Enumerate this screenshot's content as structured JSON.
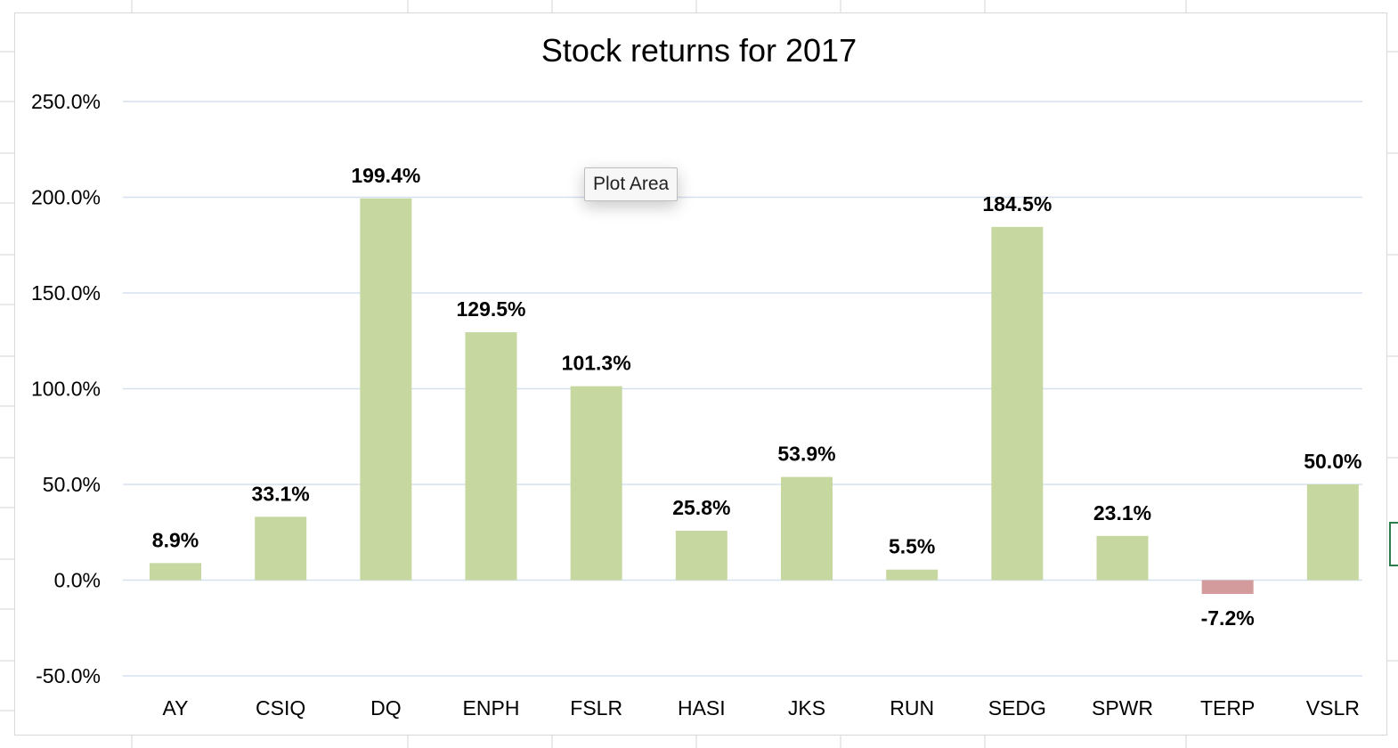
{
  "tooltip": {
    "label": "Plot Area"
  },
  "chart_data": {
    "type": "bar",
    "title": "Stock returns for 2017",
    "xlabel": "",
    "ylabel": "",
    "categories": [
      "AY",
      "CSIQ",
      "DQ",
      "ENPH",
      "FSLR",
      "HASI",
      "JKS",
      "RUN",
      "SEDG",
      "SPWR",
      "TERP",
      "VSLR"
    ],
    "values": [
      8.9,
      33.1,
      199.4,
      129.5,
      101.3,
      25.8,
      53.9,
      5.5,
      184.5,
      23.1,
      -7.2,
      50.0
    ],
    "data_labels": [
      "8.9%",
      "33.1%",
      "199.4%",
      "129.5%",
      "101.3%",
      "25.8%",
      "53.9%",
      "5.5%",
      "184.5%",
      "23.1%",
      "-7.2%",
      "50.0%"
    ],
    "yticks": [
      -50,
      0,
      50,
      100,
      150,
      200,
      250
    ],
    "ytick_labels": [
      "-50.0%",
      "0.0%",
      "50.0%",
      "100.0%",
      "150.0%",
      "200.0%",
      "250.0%"
    ],
    "ylim": [
      -50,
      250
    ],
    "grid": true,
    "legend": "none",
    "colors": {
      "positive": "#c6d7a0",
      "negative": "#d39b9b",
      "grid": "#d6e1ef"
    }
  }
}
